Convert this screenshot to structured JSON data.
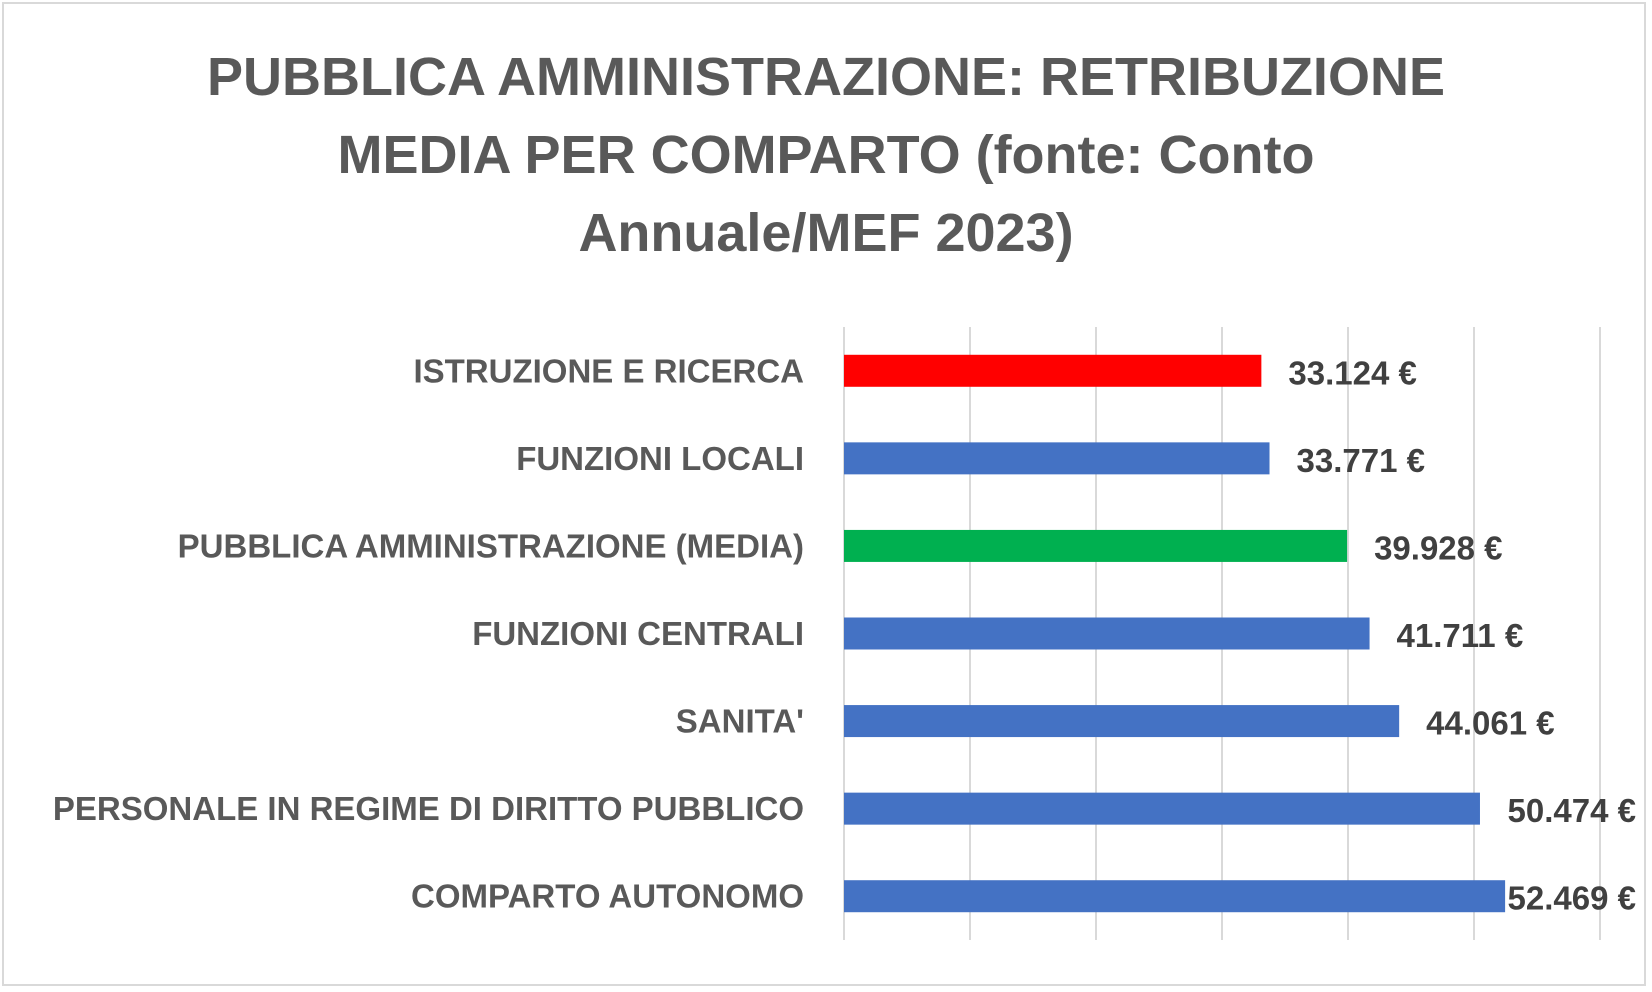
{
  "chart_data": {
    "type": "bar",
    "orientation": "horizontal",
    "title": "PUBBLICA AMMINISTRAZIONE: RETRIBUZIONE MEDIA PER COMPARTO (fonte: Conto Annuale/MEF 2023)",
    "xlabel": "",
    "ylabel": "",
    "grid": "vertical",
    "legend": "none",
    "xlim": [
      0,
      60000
    ],
    "categories": [
      "ISTRUZIONE E RICERCA",
      "FUNZIONI LOCALI",
      "PUBBLICA AMMINISTRAZIONE (MEDIA)",
      "FUNZIONI CENTRALI",
      "SANITA'",
      "PERSONALE IN REGIME DI DIRITTO PUBBLICO",
      "COMPARTO AUTONOMO"
    ],
    "values": [
      33124,
      33771,
      39928,
      41711,
      44061,
      50474,
      52469
    ],
    "value_labels": [
      "33.124 €",
      "33.771 €",
      "39.928 €",
      "41.711 €",
      "44.061 €",
      "50.474 €",
      "52.469 €"
    ],
    "bar_colors": [
      "#ff0000",
      "#4472c4",
      "#00b050",
      "#4472c4",
      "#4472c4",
      "#4472c4",
      "#4472c4"
    ]
  }
}
